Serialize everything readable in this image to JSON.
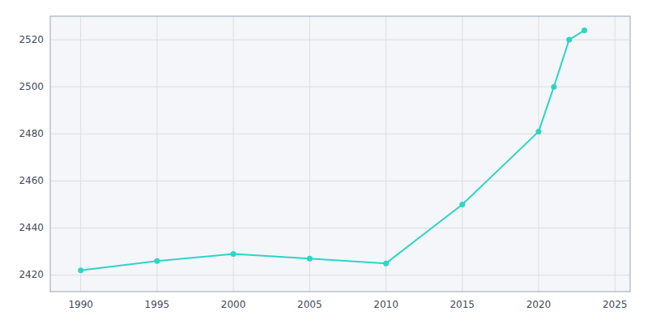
{
  "chart_data": {
    "type": "line",
    "x": [
      1990,
      1995,
      2000,
      2005,
      2010,
      2015,
      2020,
      2021,
      2022,
      2023
    ],
    "values": [
      2422,
      2426,
      2429,
      2427,
      2425,
      2450,
      2481,
      2500,
      2520,
      2524
    ],
    "color": "#2DD4C8",
    "marker": "circle",
    "xlim": [
      1988,
      2026
    ],
    "ylim": [
      2413,
      2530
    ],
    "xticks": [
      1990,
      1995,
      2000,
      2005,
      2010,
      2015,
      2020,
      2025
    ],
    "yticks": [
      2420,
      2440,
      2460,
      2480,
      2500,
      2520
    ],
    "grid": true
  }
}
